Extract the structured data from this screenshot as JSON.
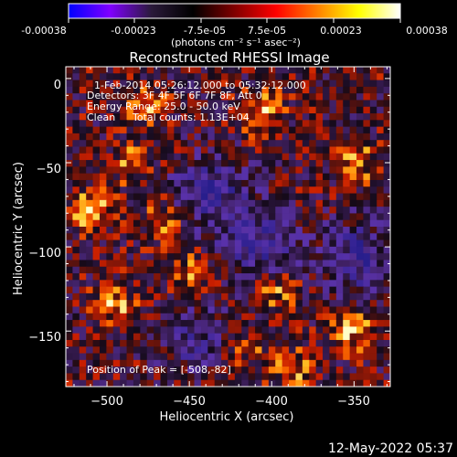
{
  "colorbar": {
    "tick_labels": [
      "-0.00038",
      "-0.00023",
      "-7.5e-05",
      "7.5e-05",
      "0.00023",
      "0.00038"
    ],
    "unit_text": "(photons cm⁻² s⁻¹ asec⁻²)",
    "range": [
      -0.00038,
      0.00038
    ],
    "colors": [
      "#0000ff",
      "#8000ff",
      "#2a1a3a",
      "#000000",
      "#800000",
      "#ff0000",
      "#ff8000",
      "#ffff00",
      "#ffffff"
    ]
  },
  "annotations": {
    "time_range": "1-Feb-2014 05:26:12.000 to 05:32:12.000",
    "detectors": "Detectors: 3F 4F 5F 6F 7F 8F, Att 0",
    "energy": "Energy Range: 25.0 - 50.0 keV",
    "algorithm": "Clean",
    "counts": "Total counts: 1.13E+04",
    "peak": "Position of Peak = [-508,-82]"
  },
  "footer": {
    "date": "12-May-2022 05:37"
  },
  "chart_data": {
    "type": "heatmap",
    "title": "Reconstructed RHESSI Image",
    "xlabel": "Heliocentric X (arcsec)",
    "ylabel": "Heliocentric Y (arcsec)",
    "xlim": [
      -525,
      -328
    ],
    "ylim": [
      -183,
      7
    ],
    "xticks": [
      -500,
      -450,
      -400,
      -350
    ],
    "xtick_labels": [
      "−500",
      "−450",
      "−400",
      "−350"
    ],
    "yticks": [
      0,
      -50,
      -100,
      -150
    ],
    "ytick_labels": [
      "0",
      "−50",
      "−100",
      "−150"
    ],
    "peak_position": [
      -508,
      -82
    ],
    "value_range": [
      -0.00038,
      0.00038
    ]
  }
}
